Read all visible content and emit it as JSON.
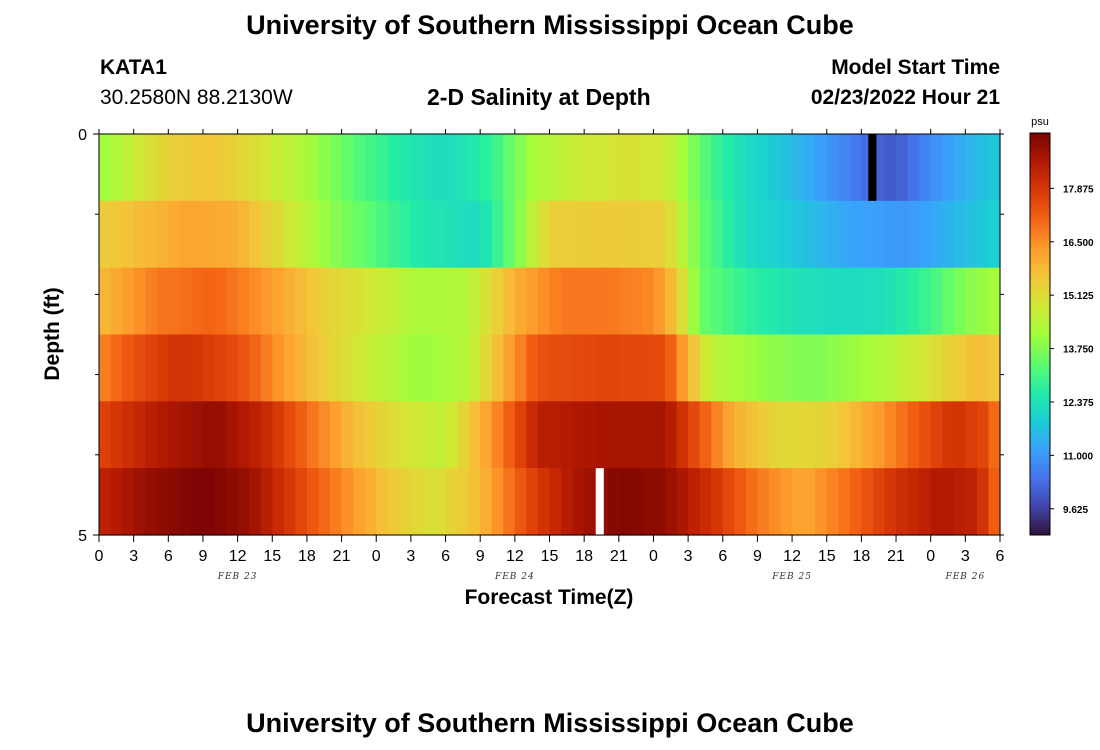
{
  "header": {
    "title": "University of Southern Mississippi Ocean Cube",
    "footer_title": "University of Southern Mississippi Ocean Cube",
    "station": "KATA1",
    "coords": "30.2580N  88.2130W",
    "subtitle": "2-D Salinity at Depth",
    "start_label": "Model Start Time",
    "start_value": "02/23/2022 Hour 21"
  },
  "chart_data": {
    "type": "heatmap",
    "title": "2-D Salinity at Depth",
    "xlabel": "Forecast Time(Z)",
    "ylabel": "Depth (ft)",
    "y_tick_labels": [
      "0",
      "5"
    ],
    "ylim": [
      0,
      5
    ],
    "x_tick_labels": [
      "0",
      "3",
      "6",
      "9",
      "12",
      "15",
      "18",
      "21",
      "0",
      "3",
      "6",
      "9",
      "12",
      "15",
      "18",
      "21",
      "0",
      "3",
      "6",
      "9",
      "12",
      "15",
      "18",
      "21",
      "0",
      "3",
      "6"
    ],
    "date_labels": [
      {
        "text": "FEB 23",
        "hour": 12
      },
      {
        "text": "FEB 24",
        "hour": 36
      },
      {
        "text": "FEB 25",
        "hour": 60
      },
      {
        "text": "FEB 26",
        "hour": 75
      }
    ],
    "xlim_hours": [
      0,
      78
    ],
    "colorbar": {
      "unit": "psu",
      "min": 8.95,
      "max": 19.3,
      "tick_labels": [
        "17.875",
        "16.500",
        "15.125",
        "13.750",
        "12.375",
        "11.000",
        "9.625"
      ],
      "tick_values": [
        17.875,
        16.5,
        15.125,
        13.75,
        12.375,
        11.0,
        9.625
      ],
      "colors": [
        "#30123b",
        "#4145ab",
        "#4675ed",
        "#39a2fc",
        "#1bcfd4",
        "#24eca6",
        "#61fc6c",
        "#a4fc3b",
        "#d1e834",
        "#f3c63a",
        "#fe9b2d",
        "#f36315",
        "#d93806",
        "#b11901",
        "#7a0403"
      ]
    },
    "rows": [
      {
        "depth_band": "surface",
        "anchors": [
          [
            0,
            14.0
          ],
          [
            6,
            15.4
          ],
          [
            10,
            15.6
          ],
          [
            14,
            15.0
          ],
          [
            18,
            14.2
          ],
          [
            22,
            13.3
          ],
          [
            26,
            12.6
          ],
          [
            30,
            12.2
          ],
          [
            34,
            12.8
          ],
          [
            36,
            13.6
          ],
          [
            38,
            14.3
          ],
          [
            42,
            14.8
          ],
          [
            46,
            15.0
          ],
          [
            49,
            14.8
          ],
          [
            53,
            13.0
          ],
          [
            56,
            12.2
          ],
          [
            60,
            11.6
          ],
          [
            64,
            10.8
          ],
          [
            67,
            10.2
          ],
          [
            69,
            10.0
          ],
          [
            72,
            10.8
          ],
          [
            76,
            11.6
          ],
          [
            78,
            11.8
          ]
        ]
      },
      {
        "depth_band": "1",
        "anchors": [
          [
            0,
            15.4
          ],
          [
            4,
            15.8
          ],
          [
            8,
            16.2
          ],
          [
            12,
            16.0
          ],
          [
            16,
            15.0
          ],
          [
            20,
            13.9
          ],
          [
            24,
            13.2
          ],
          [
            28,
            12.5
          ],
          [
            33,
            12.2
          ],
          [
            36,
            13.6
          ],
          [
            39,
            15.4
          ],
          [
            44,
            15.5
          ],
          [
            49,
            15.4
          ],
          [
            52,
            13.5
          ],
          [
            56,
            12.2
          ],
          [
            60,
            11.8
          ],
          [
            65,
            11.2
          ],
          [
            70,
            11.0
          ],
          [
            74,
            11.5
          ],
          [
            78,
            12.0
          ]
        ]
      },
      {
        "depth_band": "2",
        "anchors": [
          [
            0,
            15.8
          ],
          [
            5,
            16.8
          ],
          [
            10,
            17.1
          ],
          [
            15,
            16.3
          ],
          [
            20,
            15.3
          ],
          [
            24,
            14.8
          ],
          [
            28,
            14.2
          ],
          [
            32,
            14.4
          ],
          [
            36,
            16.0
          ],
          [
            40,
            16.8
          ],
          [
            44,
            16.8
          ],
          [
            48,
            16.6
          ],
          [
            50,
            15.6
          ],
          [
            52,
            13.5
          ],
          [
            56,
            12.8
          ],
          [
            60,
            12.4
          ],
          [
            64,
            12.2
          ],
          [
            68,
            12.3
          ],
          [
            72,
            13.0
          ],
          [
            75,
            13.8
          ],
          [
            78,
            14.2
          ]
        ]
      },
      {
        "depth_band": "3",
        "anchors": [
          [
            0,
            16.6
          ],
          [
            3,
            17.4
          ],
          [
            7,
            18.0
          ],
          [
            12,
            17.5
          ],
          [
            16,
            16.3
          ],
          [
            20,
            15.3
          ],
          [
            24,
            14.6
          ],
          [
            28,
            14.0
          ],
          [
            32,
            14.4
          ],
          [
            35,
            16.0
          ],
          [
            38,
            17.4
          ],
          [
            44,
            17.6
          ],
          [
            49,
            17.5
          ],
          [
            51,
            16.0
          ],
          [
            53,
            14.5
          ],
          [
            58,
            13.9
          ],
          [
            62,
            13.7
          ],
          [
            67,
            14.2
          ],
          [
            72,
            15.0
          ],
          [
            76,
            15.8
          ],
          [
            78,
            15.5
          ]
        ]
      },
      {
        "depth_band": "4",
        "anchors": [
          [
            0,
            17.6
          ],
          [
            5,
            18.5
          ],
          [
            10,
            19.0
          ],
          [
            14,
            18.3
          ],
          [
            18,
            17.0
          ],
          [
            22,
            15.8
          ],
          [
            26,
            15.0
          ],
          [
            30,
            14.6
          ],
          [
            34,
            16.4
          ],
          [
            38,
            18.4
          ],
          [
            44,
            18.7
          ],
          [
            49,
            18.7
          ],
          [
            52,
            17.3
          ],
          [
            55,
            16.0
          ],
          [
            59,
            15.2
          ],
          [
            63,
            15.3
          ],
          [
            67,
            16.2
          ],
          [
            71,
            17.3
          ],
          [
            74,
            18.0
          ],
          [
            77,
            17.5
          ],
          [
            78,
            16.5
          ]
        ]
      },
      {
        "depth_band": "5",
        "anchors": [
          [
            0,
            18.3
          ],
          [
            4,
            18.9
          ],
          [
            9,
            19.3
          ],
          [
            13,
            18.9
          ],
          [
            17,
            17.7
          ],
          [
            21,
            16.6
          ],
          [
            25,
            15.6
          ],
          [
            29,
            15.0
          ],
          [
            33,
            15.8
          ],
          [
            37,
            17.5
          ],
          [
            41,
            18.6
          ],
          [
            45,
            19.2
          ],
          [
            49,
            19.0
          ],
          [
            53,
            18.0
          ],
          [
            57,
            16.8
          ],
          [
            61,
            16.1
          ],
          [
            65,
            17.0
          ],
          [
            69,
            18.0
          ],
          [
            73,
            18.6
          ],
          [
            76,
            18.3
          ],
          [
            78,
            16.8
          ]
        ]
      }
    ],
    "missing_values": [
      {
        "row": 0,
        "hour_start": 66.6,
        "hour_end": 67.3,
        "color": "#000000"
      },
      {
        "row": 5,
        "hour_start": 43.0,
        "hour_end": 43.7,
        "color": "#ffffff"
      }
    ]
  }
}
